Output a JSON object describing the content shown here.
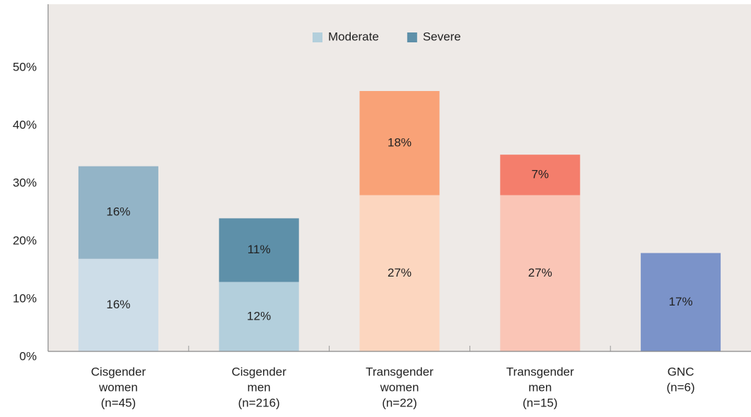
{
  "chart_data": {
    "type": "bar",
    "stacked": true,
    "categories": [
      [
        "Cisgender",
        "women",
        "(n=45)"
      ],
      [
        "Cisgender",
        "men",
        "(n=216)"
      ],
      [
        "Transgender",
        "women",
        "(n=22)"
      ],
      [
        "Transgender",
        "men",
        "(n=15)"
      ],
      [
        "GNC",
        "(n=6)"
      ]
    ],
    "series": [
      {
        "name": "Moderate",
        "color": "#b3cfdc",
        "colors": [
          "#cddde8",
          "#b3cfdc",
          "#fcd6bf",
          "#fac5b6",
          "#7b93c9"
        ],
        "values": [
          16,
          12,
          27,
          27,
          17
        ],
        "value_labels": [
          "16%",
          "12%",
          "27%",
          "27%",
          "17%"
        ]
      },
      {
        "name": "Severe",
        "color": "#5e90a9",
        "colors": [
          "#93b4c7",
          "#5e90a9",
          "#f9a277",
          "#f47e6c",
          null
        ],
        "values": [
          16,
          11,
          18,
          7,
          null
        ],
        "value_labels": [
          "16%",
          "11%",
          "18%",
          "7%",
          null
        ]
      }
    ],
    "ylim": [
      0,
      60
    ],
    "yticks": [
      {
        "value": 0,
        "label": "0%"
      },
      {
        "value": 10,
        "label": "10%"
      },
      {
        "value": 20,
        "label": "20%"
      },
      {
        "value": 30,
        "label": "30%"
      },
      {
        "value": 40,
        "label": "40%"
      },
      {
        "value": 50,
        "label": "50%"
      }
    ],
    "legend": "top"
  }
}
